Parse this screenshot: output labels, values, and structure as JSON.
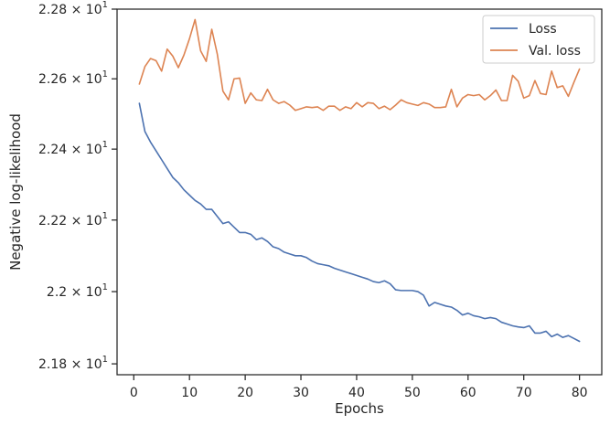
{
  "chart_data": {
    "type": "line",
    "xlabel": "Epochs",
    "ylabel": "Negative log-likelihood",
    "xlim": [
      -3.0,
      84.0
    ],
    "ylim": [
      21.77,
      22.8
    ],
    "xticks": [
      0,
      10,
      20,
      30,
      40,
      50,
      60,
      70,
      80
    ],
    "yticks": [
      {
        "value": 21.8,
        "mantissa": "2.18",
        "base": "10",
        "exp": "1"
      },
      {
        "value": 22.0,
        "mantissa": "2.2",
        "base": "10",
        "exp": "1"
      },
      {
        "value": 22.2,
        "mantissa": "2.22",
        "base": "10",
        "exp": "1"
      },
      {
        "value": 22.4,
        "mantissa": "2.24",
        "base": "10",
        "exp": "1"
      },
      {
        "value": 22.6,
        "mantissa": "2.26",
        "base": "10",
        "exp": "1"
      },
      {
        "value": 22.8,
        "mantissa": "2.28",
        "base": "10",
        "exp": "1"
      }
    ],
    "y_scale": "log",
    "grid": false,
    "legend_position": "top-right",
    "series": [
      {
        "name": "Loss",
        "color": "#4c72b0",
        "x": [
          1,
          2,
          3,
          4,
          5,
          6,
          7,
          8,
          9,
          10,
          11,
          12,
          13,
          14,
          15,
          16,
          17,
          18,
          19,
          20,
          21,
          22,
          23,
          24,
          25,
          26,
          27,
          28,
          29,
          30,
          31,
          32,
          33,
          34,
          35,
          36,
          37,
          38,
          39,
          40,
          41,
          42,
          43,
          44,
          45,
          46,
          47,
          48,
          49,
          50,
          51,
          52,
          53,
          54,
          55,
          56,
          57,
          58,
          59,
          60,
          61,
          62,
          63,
          64,
          65,
          66,
          67,
          68,
          69,
          70,
          71,
          72,
          73,
          74,
          75,
          76,
          77,
          78,
          79,
          80
        ],
        "values": [
          22.53,
          22.45,
          22.42,
          22.395,
          22.37,
          22.345,
          22.32,
          22.305,
          22.285,
          22.27,
          22.255,
          22.245,
          22.23,
          22.23,
          22.21,
          22.19,
          22.195,
          22.18,
          22.165,
          22.165,
          22.16,
          22.145,
          22.15,
          22.14,
          22.125,
          22.12,
          22.11,
          22.105,
          22.1,
          22.1,
          22.095,
          22.085,
          22.078,
          22.075,
          22.072,
          22.065,
          22.06,
          22.055,
          22.05,
          22.045,
          22.04,
          22.035,
          22.028,
          22.025,
          22.03,
          22.022,
          22.005,
          22.003,
          22.003,
          22.003,
          22.0,
          21.99,
          21.96,
          21.97,
          21.965,
          21.96,
          21.957,
          21.948,
          21.935,
          21.94,
          21.933,
          21.93,
          21.925,
          21.928,
          21.925,
          21.915,
          21.91,
          21.905,
          21.902,
          21.9,
          21.905,
          21.885,
          21.885,
          21.89,
          21.875,
          21.882,
          21.873,
          21.878,
          21.87,
          21.862
        ]
      },
      {
        "name": "Val. loss",
        "color": "#dd8452",
        "x": [
          1,
          2,
          3,
          4,
          5,
          6,
          7,
          8,
          9,
          10,
          11,
          12,
          13,
          14,
          15,
          16,
          17,
          18,
          19,
          20,
          21,
          22,
          23,
          24,
          25,
          26,
          27,
          28,
          29,
          30,
          31,
          32,
          33,
          34,
          35,
          36,
          37,
          38,
          39,
          40,
          41,
          42,
          43,
          44,
          45,
          46,
          47,
          48,
          49,
          50,
          51,
          52,
          53,
          54,
          55,
          56,
          57,
          58,
          59,
          60,
          61,
          62,
          63,
          64,
          65,
          66,
          67,
          68,
          69,
          70,
          71,
          72,
          73,
          74,
          75,
          76,
          77,
          78,
          79,
          80
        ],
        "values": [
          22.585,
          22.635,
          22.658,
          22.652,
          22.622,
          22.685,
          22.665,
          22.632,
          22.668,
          22.715,
          22.77,
          22.68,
          22.65,
          22.742,
          22.67,
          22.565,
          22.54,
          22.6,
          22.602,
          22.53,
          22.56,
          22.54,
          22.538,
          22.57,
          22.54,
          22.53,
          22.535,
          22.525,
          22.51,
          22.515,
          22.52,
          22.518,
          22.52,
          22.51,
          22.522,
          22.522,
          22.51,
          22.52,
          22.515,
          22.532,
          22.52,
          22.532,
          22.53,
          22.515,
          22.522,
          22.512,
          22.525,
          22.54,
          22.532,
          22.528,
          22.524,
          22.532,
          22.528,
          22.518,
          22.518,
          22.52,
          22.57,
          22.52,
          22.545,
          22.555,
          22.552,
          22.555,
          22.54,
          22.552,
          22.568,
          22.538,
          22.538,
          22.61,
          22.593,
          22.545,
          22.552,
          22.595,
          22.558,
          22.555,
          22.622,
          22.575,
          22.58,
          22.55,
          22.59,
          22.628
        ]
      }
    ]
  }
}
